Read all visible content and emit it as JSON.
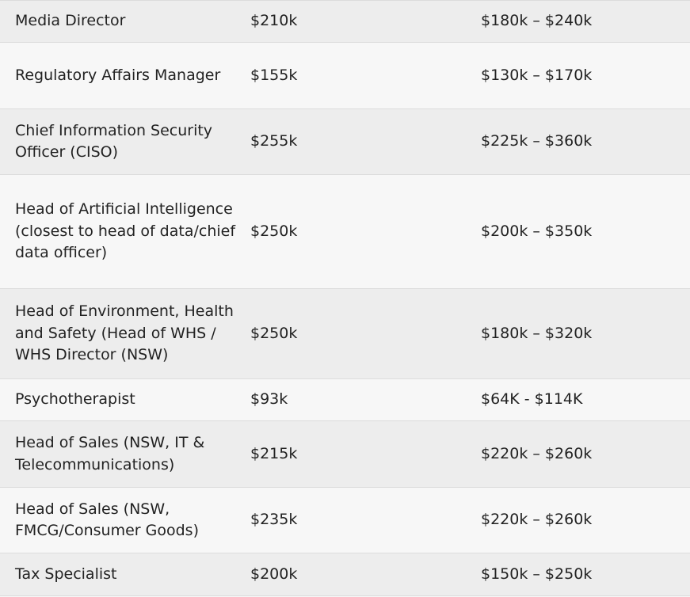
{
  "table": {
    "rows": [
      [
        "Media Director",
        "$210k",
        "$180k – $240k"
      ],
      [
        "Regulatory Affairs Manager",
        "$155k",
        "$130k – $170k"
      ],
      [
        "Chief Information Security Officer (CISO)",
        "$255k",
        "$225k – $360k"
      ],
      [
        "Head of Artificial Intelligence (closest to head of data/chief data officer)",
        "$250k",
        "$200k – $350k"
      ],
      [
        "Head of Environment, Health and Safety (Head of WHS / WHS Director (NSW)",
        "$250k",
        "$180k – $320k"
      ],
      [
        "Psychotherapist",
        "$93k",
        "$64K - $114K"
      ],
      [
        "Head of Sales (NSW, IT & Telecommunications)",
        "$215k",
        "$220k – $260k"
      ],
      [
        "Head of Sales (NSW, FMCG/Consumer Goods)",
        "$235k",
        "$220k – $260k"
      ],
      [
        "Tax Specialist",
        "$200k",
        "$150k – $250k"
      ]
    ]
  }
}
